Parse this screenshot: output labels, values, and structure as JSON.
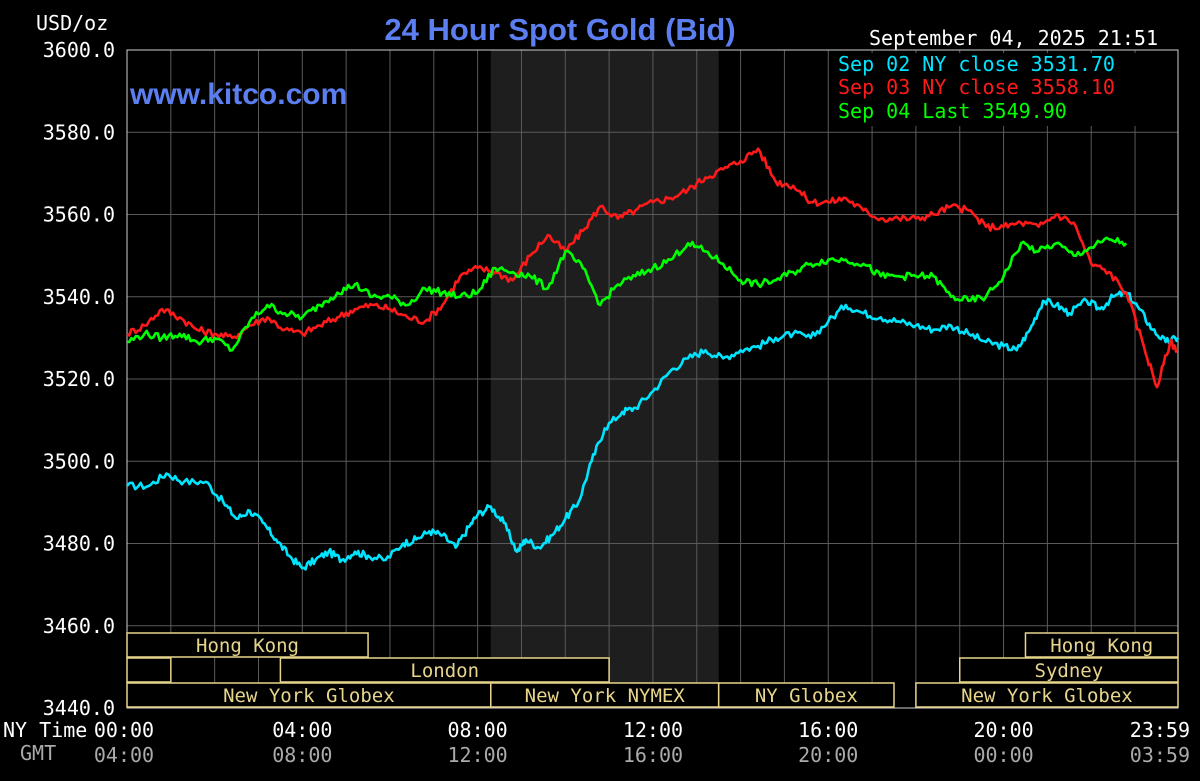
{
  "header": {
    "unit": "USD/oz",
    "title": "24 Hour Spot Gold (Bid)",
    "website": "www.kitco.com",
    "timestamp": "September 04, 2025 21:51"
  },
  "legend": [
    {
      "text": "Sep 02 NY close 3531.70",
      "color": "#00e5ff"
    },
    {
      "text": "Sep 03 NY close 3558.10",
      "color": "#ff1a1a"
    },
    {
      "text": "Sep 04 Last 3549.90",
      "color": "#00ff00"
    }
  ],
  "axis": {
    "x_row_label": "NY Time",
    "gmt_row_label": "GMT",
    "x_ticks": [
      "00:00",
      "04:00",
      "08:00",
      "12:00",
      "16:00",
      "20:00",
      "23:59"
    ],
    "gmt_ticks": [
      "04:00",
      "08:00",
      "12:00",
      "16:00",
      "20:00",
      "00:00",
      "03:59"
    ],
    "y_ticks": [
      "3600.0",
      "3580.0",
      "3560.0",
      "3540.0",
      "3520.0",
      "3500.0",
      "3480.0",
      "3460.0",
      "3440.0"
    ]
  },
  "sessions": [
    {
      "label": "Hong Kong",
      "start": 0,
      "end": 5.5,
      "row": 0
    },
    {
      "label": "Hong Kong",
      "start": 20.5,
      "end": 23.98,
      "row": 0
    },
    {
      "label": "",
      "start": 0,
      "end": 1.0,
      "row": 1
    },
    {
      "label": "London",
      "start": 3.5,
      "end": 11.0,
      "row": 1
    },
    {
      "label": "Sydney",
      "start": 19.0,
      "end": 23.98,
      "row": 1
    },
    {
      "label": "New York Globex",
      "start": 0,
      "end": 8.3,
      "row": 2
    },
    {
      "label": "New York NYMEX",
      "start": 8.3,
      "end": 13.5,
      "row": 2
    },
    {
      "label": "NY Globex",
      "start": 13.5,
      "end": 17.5,
      "row": 2
    },
    {
      "label": "New York Globex",
      "start": 18.0,
      "end": 23.98,
      "row": 2
    }
  ],
  "chart_data": {
    "type": "line",
    "title": "24 Hour Spot Gold (Bid)",
    "ylabel": "USD/oz",
    "xlabel": "NY Time",
    "xlim": [
      0,
      23.98
    ],
    "ylim": [
      3440,
      3600
    ],
    "grid": true,
    "legend_position": "top-right",
    "nymex_session_hours": [
      8.3,
      13.5
    ],
    "series": [
      {
        "name": "Sep 02 NY close 3531.70",
        "color": "#00e5ff",
        "x": [
          0,
          0.5,
          0.9,
          1.3,
          1.8,
          2.2,
          2.5,
          2.8,
          3.1,
          3.4,
          3.7,
          4.0,
          4.3,
          4.6,
          4.9,
          5.2,
          5.5,
          5.9,
          6.3,
          6.6,
          6.9,
          7.2,
          7.5,
          7.8,
          8.0,
          8.3,
          8.6,
          8.9,
          9.1,
          9.4,
          9.7,
          10.0,
          10.3,
          10.6,
          10.9,
          11.3,
          11.6,
          12.0,
          12.4,
          12.8,
          13.2,
          13.6,
          14.0,
          14.4,
          14.8,
          15.2,
          15.6,
          16.0,
          16.4,
          16.8,
          17.2,
          17.6,
          18.0,
          18.4,
          18.8,
          19.2,
          19.6,
          20.0,
          20.3,
          20.6,
          20.9,
          21.2,
          21.5,
          21.9,
          22.2,
          22.5,
          22.8,
          23.1,
          23.4,
          23.7,
          23.98
        ],
        "y": [
          3494,
          3494,
          3497,
          3495,
          3495,
          3490,
          3486,
          3488,
          3485,
          3481,
          3477,
          3474,
          3476,
          3478,
          3476,
          3478,
          3477,
          3476,
          3480,
          3481,
          3483,
          3482,
          3479,
          3484,
          3487,
          3489,
          3485,
          3478,
          3481,
          3479,
          3482,
          3486,
          3490,
          3500,
          3508,
          3512,
          3513,
          3517,
          3522,
          3525,
          3527,
          3525,
          3527,
          3528,
          3530,
          3531,
          3530,
          3534,
          3538,
          3536,
          3535,
          3534,
          3533,
          3532,
          3533,
          3531,
          3529,
          3528,
          3527,
          3532,
          3539,
          3538,
          3536,
          3539,
          3537,
          3540,
          3541,
          3537,
          3532,
          3529,
          3530
        ]
      },
      {
        "name": "Sep 03 NY close 3558.10",
        "color": "#ff1a1a",
        "x": [
          0,
          0.4,
          0.8,
          1.2,
          1.6,
          2.0,
          2.4,
          2.8,
          3.2,
          3.6,
          4.0,
          4.4,
          4.8,
          5.2,
          5.6,
          6.0,
          6.4,
          6.8,
          7.2,
          7.6,
          8.0,
          8.4,
          8.8,
          9.2,
          9.6,
          10.0,
          10.4,
          10.8,
          11.2,
          11.6,
          12.0,
          12.4,
          12.8,
          13.2,
          13.6,
          14.0,
          14.4,
          14.8,
          15.2,
          15.6,
          16.0,
          16.4,
          16.8,
          17.2,
          17.6,
          18.0,
          18.4,
          18.8,
          19.2,
          19.6,
          20.0,
          20.4,
          20.8,
          21.2,
          21.6,
          22.0,
          22.4,
          22.8,
          23.2,
          23.5,
          23.8,
          23.98
        ],
        "y": [
          3531,
          3533,
          3537,
          3535,
          3532,
          3531,
          3530,
          3533,
          3535,
          3532,
          3531,
          3533,
          3535,
          3537,
          3538,
          3537,
          3535,
          3534,
          3538,
          3545,
          3547,
          3546,
          3544,
          3550,
          3555,
          3551,
          3556,
          3562,
          3559,
          3561,
          3563,
          3564,
          3566,
          3569,
          3571,
          3573,
          3576,
          3568,
          3567,
          3563,
          3563,
          3564,
          3561,
          3559,
          3559,
          3559,
          3560,
          3562,
          3561,
          3557,
          3557,
          3558,
          3557,
          3560,
          3558,
          3548,
          3546,
          3541,
          3528,
          3518,
          3529,
          3527
        ]
      },
      {
        "name": "Sep 04 Last 3549.90",
        "color": "#00ff00",
        "x": [
          0,
          0.4,
          0.8,
          1.2,
          1.6,
          2.0,
          2.4,
          2.8,
          3.2,
          3.6,
          4.0,
          4.4,
          4.8,
          5.2,
          5.6,
          6.0,
          6.4,
          6.8,
          7.2,
          7.6,
          8.0,
          8.4,
          8.8,
          9.2,
          9.6,
          10.0,
          10.4,
          10.8,
          11.2,
          11.6,
          12.0,
          12.4,
          12.8,
          13.2,
          13.6,
          14.0,
          14.4,
          14.8,
          15.2,
          15.6,
          16.0,
          16.4,
          16.8,
          17.2,
          17.6,
          18.0,
          18.4,
          18.8,
          19.2,
          19.6,
          20.0,
          20.4,
          20.8,
          21.2,
          21.6,
          22.0,
          22.4,
          22.8
        ],
        "y": [
          3529,
          3531,
          3530,
          3531,
          3529,
          3530,
          3527,
          3534,
          3538,
          3536,
          3535,
          3538,
          3541,
          3543,
          3540,
          3540,
          3538,
          3542,
          3541,
          3540,
          3541,
          3547,
          3546,
          3545,
          3542,
          3551,
          3547,
          3538,
          3543,
          3545,
          3547,
          3549,
          3553,
          3551,
          3548,
          3544,
          3543,
          3544,
          3546,
          3548,
          3549,
          3549,
          3548,
          3545,
          3545,
          3545,
          3545,
          3540,
          3539,
          3540,
          3545,
          3553,
          3551,
          3553,
          3550,
          3552,
          3554,
          3553
        ]
      }
    ]
  }
}
